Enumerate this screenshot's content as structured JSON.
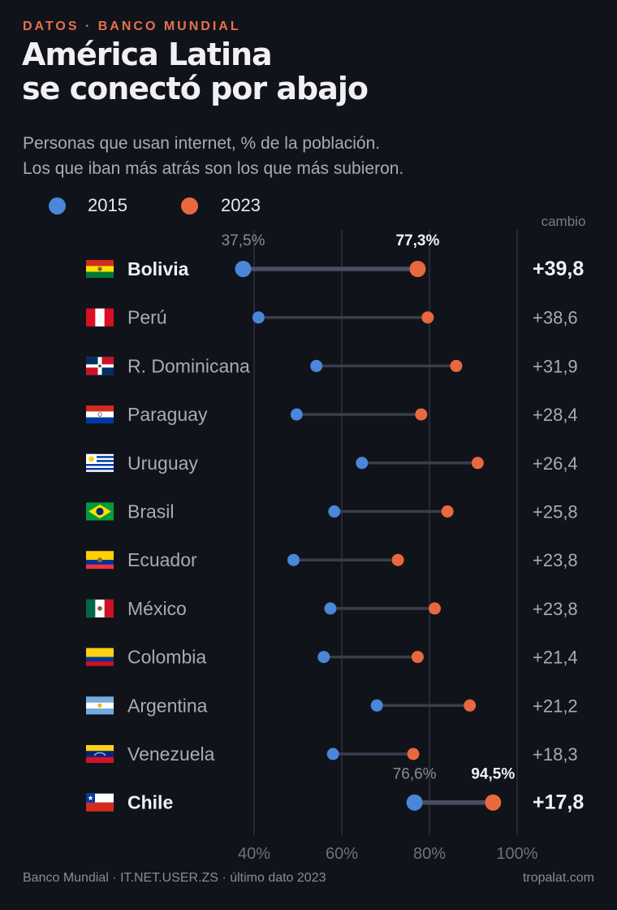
{
  "header": {
    "kicker": "DATOS · BANCO MUNDIAL",
    "title_line1": "América Latina",
    "title_line2": "se conectó por abajo",
    "subtitle_line1": "Personas que usan internet, % de la población.",
    "subtitle_line2": "Los que iban más atrás son los que más subieron."
  },
  "legend": {
    "items": [
      {
        "label": "2015",
        "color": "#4a86d9"
      },
      {
        "label": "2023",
        "color": "#e8683f"
      }
    ]
  },
  "colors": {
    "background": "#11131a",
    "dot_2015": "#4a86d9",
    "dot_2023": "#e8683f",
    "connector": "#3a3d4d",
    "text_primary": "#f1f0f5",
    "text_muted": "#a9aab6",
    "grid": "#2e3140"
  },
  "chart_data": {
    "type": "dumbbell",
    "xlim": [
      40,
      100
    ],
    "xticks": [
      {
        "value": 40,
        "label": "40%"
      },
      {
        "value": 60,
        "label": "60%"
      },
      {
        "value": 80,
        "label": "80%"
      },
      {
        "value": 100,
        "label": "100%"
      }
    ],
    "change_header": "cambio",
    "series_names": [
      "2015",
      "2023"
    ],
    "rows": [
      {
        "country": "Bolivia",
        "flag": "flag-bolivia",
        "v2015": 37.5,
        "v2023": 77.3,
        "change": "+39,8",
        "highlight": true,
        "label2015": "37,5%",
        "label2023": "77,3%"
      },
      {
        "country": "Perú",
        "flag": "flag-peru",
        "v2015": 41.0,
        "v2023": 79.6,
        "change": "+38,6",
        "highlight": false
      },
      {
        "country": "R. Dominicana",
        "flag": "flag-dominican-republic",
        "v2015": 54.2,
        "v2023": 86.1,
        "change": "+31,9",
        "highlight": false
      },
      {
        "country": "Paraguay",
        "flag": "flag-paraguay",
        "v2015": 49.7,
        "v2023": 78.1,
        "change": "+28,4",
        "highlight": false
      },
      {
        "country": "Uruguay",
        "flag": "flag-uruguay",
        "v2015": 64.6,
        "v2023": 91.0,
        "change": "+26,4",
        "highlight": false
      },
      {
        "country": "Brasil",
        "flag": "flag-brazil",
        "v2015": 58.3,
        "v2023": 84.1,
        "change": "+25,8",
        "highlight": false
      },
      {
        "country": "Ecuador",
        "flag": "flag-ecuador",
        "v2015": 49.0,
        "v2023": 72.8,
        "change": "+23,8",
        "highlight": false
      },
      {
        "country": "México",
        "flag": "flag-mexico",
        "v2015": 57.4,
        "v2023": 81.2,
        "change": "+23,8",
        "highlight": false
      },
      {
        "country": "Colombia",
        "flag": "flag-colombia",
        "v2015": 55.9,
        "v2023": 77.3,
        "change": "+21,4",
        "highlight": false
      },
      {
        "country": "Argentina",
        "flag": "flag-argentina",
        "v2015": 68.0,
        "v2023": 89.2,
        "change": "+21,2",
        "highlight": false
      },
      {
        "country": "Venezuela",
        "flag": "flag-venezuela",
        "v2015": 58.0,
        "v2023": 76.3,
        "change": "+18,3",
        "highlight": false
      },
      {
        "country": "Chile",
        "flag": "flag-chile",
        "v2015": 76.6,
        "v2023": 94.5,
        "change": "+17,8",
        "highlight": true,
        "label2015": "76,6%",
        "label2023": "94,5%"
      }
    ]
  },
  "footer": {
    "source": "Banco Mundial · IT.NET.USER.ZS · último dato 2023",
    "site": "tropalat.com"
  }
}
